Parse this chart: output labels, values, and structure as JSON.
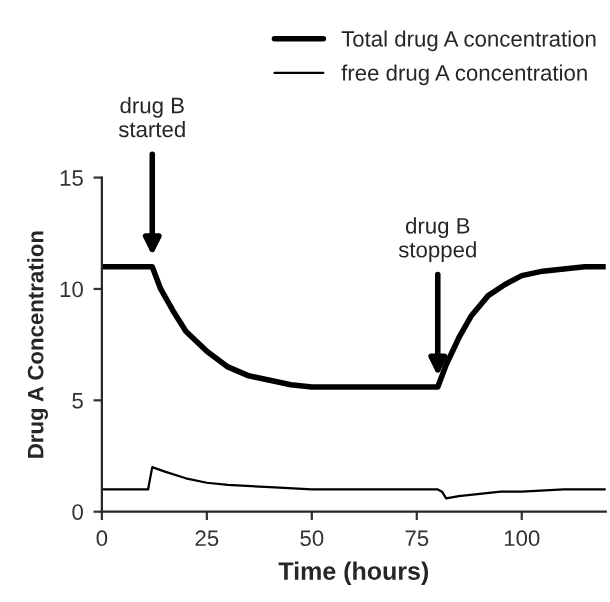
{
  "chart_data": {
    "type": "line",
    "xlabel": "Time (hours)",
    "ylabel": "Drug A Concentration",
    "xlim": [
      0,
      120
    ],
    "ylim": [
      0,
      15
    ],
    "xticks": [
      0,
      25,
      50,
      75,
      100
    ],
    "yticks": [
      0,
      5,
      10,
      15
    ],
    "grid": false,
    "legend": "top right",
    "marker": "none",
    "line_style": "solid",
    "series": [
      {
        "name": "Total drug A concentration",
        "color": "#000000",
        "x": [
          0,
          12,
          14,
          17,
          20,
          25,
          30,
          35,
          40,
          45,
          50,
          55,
          60,
          70,
          80,
          82,
          85,
          88,
          92,
          96,
          100,
          105,
          110,
          115,
          120
        ],
        "values": [
          11,
          11,
          10,
          9,
          8.1,
          7.2,
          6.5,
          6.1,
          5.9,
          5.7,
          5.6,
          5.6,
          5.6,
          5.6,
          5.6,
          6.6,
          7.8,
          8.8,
          9.7,
          10.2,
          10.6,
          10.8,
          10.9,
          11,
          11
        ]
      },
      {
        "name": "free drug A concentration",
        "color": "#000000",
        "x": [
          0,
          11,
          12,
          15,
          20,
          25,
          30,
          40,
          50,
          80,
          81,
          82,
          85,
          90,
          95,
          100,
          110,
          120
        ],
        "values": [
          1,
          1,
          2,
          1.8,
          1.5,
          1.3,
          1.2,
          1.1,
          1,
          1,
          0.9,
          0.6,
          0.7,
          0.8,
          0.9,
          0.9,
          1,
          1
        ]
      }
    ],
    "annotations": [
      {
        "text": "drug B\nstarted",
        "x": 12,
        "y": 11
      },
      {
        "text": "drug B\nstopped",
        "x": 80,
        "y": 5.6
      }
    ]
  }
}
